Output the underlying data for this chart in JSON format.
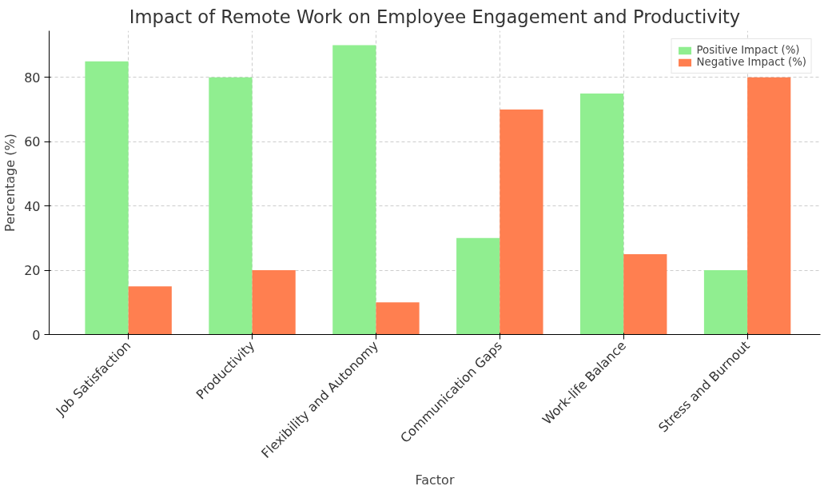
{
  "chart_data": {
    "type": "bar",
    "title": "Impact of Remote Work on Employee Engagement and Productivity",
    "xlabel": "Factor",
    "ylabel": "Percentage (%)",
    "categories": [
      "Job Satisfaction",
      "Productivity",
      "Flexibility and Autonomy",
      "Communication Gaps",
      "Work-life Balance",
      "Stress and Burnout"
    ],
    "series": [
      {
        "name": "Positive Impact (%)",
        "color": "#90ee90",
        "values": [
          85,
          80,
          90,
          30,
          75,
          20
        ]
      },
      {
        "name": "Negative Impact (%)",
        "color": "#ff7f50",
        "values": [
          15,
          20,
          10,
          70,
          25,
          80
        ]
      }
    ],
    "ylim": [
      0,
      94.5
    ],
    "yticks": [
      0,
      20,
      40,
      60,
      80
    ],
    "grid": true,
    "legend": "top right"
  }
}
